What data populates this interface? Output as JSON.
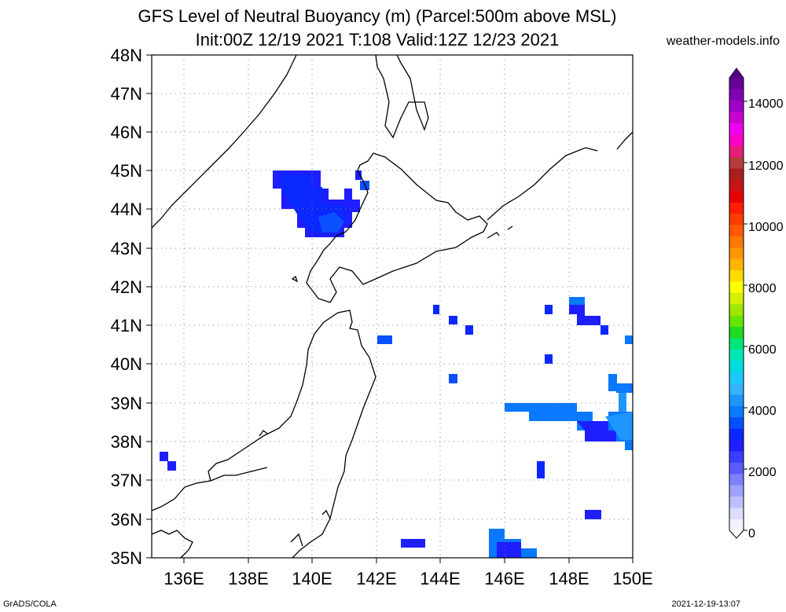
{
  "title_line1": "GFS Level of Neutral Buoyancy (m) (Parcel:500m above MSL)",
  "title_line2": "Init:00Z 12/19 2021 T:108 Valid:12Z 12/23 2021",
  "brand": "weather-models.info",
  "footer_left": "GrADS/COLA",
  "footer_right": "2021-12-19-13:07",
  "map": {
    "lat_labels": [
      "48N",
      "47N",
      "46N",
      "45N",
      "44N",
      "43N",
      "42N",
      "41N",
      "40N",
      "39N",
      "38N",
      "37N",
      "36N",
      "35N"
    ],
    "lon_labels": [
      "136E",
      "138E",
      "140E",
      "142E",
      "144E",
      "146E",
      "148E",
      "150E"
    ]
  },
  "colorbar": {
    "labels": [
      "14000",
      "12000",
      "10000",
      "8000",
      "6000",
      "4000",
      "2000",
      "0"
    ],
    "colors": [
      "#f2f2ff",
      "#dcdcff",
      "#bebeff",
      "#a0a0ff",
      "#8080ff",
      "#5a5aff",
      "#3c3cff",
      "#1e1eff",
      "#0a28ff",
      "#0050ff",
      "#0a78ff",
      "#1e96ff",
      "#32b4ff",
      "#1ec8ff",
      "#00dcdc",
      "#00e6b4",
      "#00e678",
      "#1edc1e",
      "#64e600",
      "#a0e600",
      "#d2f000",
      "#ffff00",
      "#ffdc00",
      "#ffb400",
      "#ff9600",
      "#ff7800",
      "#ff5a00",
      "#ff3c00",
      "#ff1e00",
      "#e60000",
      "#c81414",
      "#aa1e1e",
      "#b43c3c",
      "#e61e78",
      "#ff00c8",
      "#f000f0",
      "#c800d2",
      "#a000c8",
      "#8200b4",
      "#640096"
    ]
  },
  "legend": {
    "scale_levels": [
      "0",
      "2000",
      "4000",
      "6000",
      "8000",
      "10000",
      "12000",
      "14000"
    ]
  }
}
